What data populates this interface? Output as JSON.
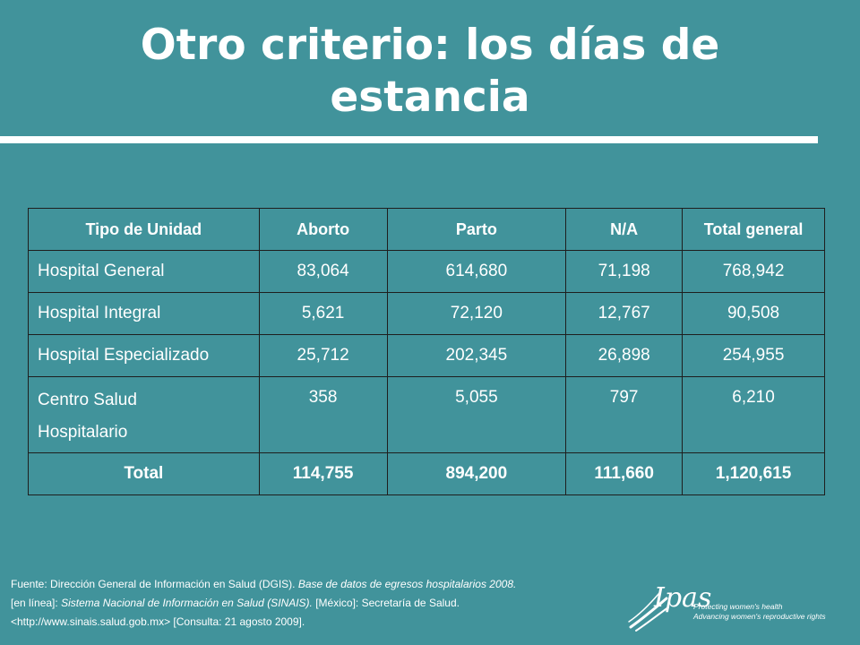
{
  "slide": {
    "title_line1": "Otro criterio: los días de",
    "title_line2": "estancia"
  },
  "table": {
    "headers": [
      "Tipo de Unidad",
      "Aborto",
      "Parto",
      "N/A",
      "Total general"
    ],
    "rows": [
      {
        "name": "Hospital General",
        "aborto": "83,064",
        "parto": "614,680",
        "na": "71,198",
        "total": "768,942"
      },
      {
        "name": "Hospital Integral",
        "aborto": "5,621",
        "parto": "72,120",
        "na": "12,767",
        "total": "90,508"
      },
      {
        "name": "Hospital Especializado",
        "aborto": "25,712",
        "parto": "202,345",
        "na": "26,898",
        "total": "254,955"
      },
      {
        "name_line1": "Centro Salud",
        "name_line2": "Hospitalario",
        "aborto": "358",
        "parto": "5,055",
        "na": "797",
        "total": "6,210"
      }
    ],
    "total_row": {
      "name": "Total",
      "aborto": "114,755",
      "parto": "894,200",
      "na": "111,660",
      "total": "1,120,615"
    }
  },
  "source": {
    "prefix": "Fuente: Dirección General de Información en Salud (DGIS).",
    "base_italic": "Base de datos de egresos hospitalarios 2008.",
    "line2_prefix": "[en línea]:",
    "line2_italic": "Sistema Nacional de Información en Salud (SINAIS).",
    "line2_suffix": "[México]: Secretaría de Salud.",
    "line3": "<http://www.sinais.salud.gob.mx> [Consulta: 21 agosto 2009]."
  },
  "logo": {
    "word": "Ipas",
    "tagline1": "Protecting women's health",
    "tagline2": "Advancing women's reproductive rights"
  }
}
